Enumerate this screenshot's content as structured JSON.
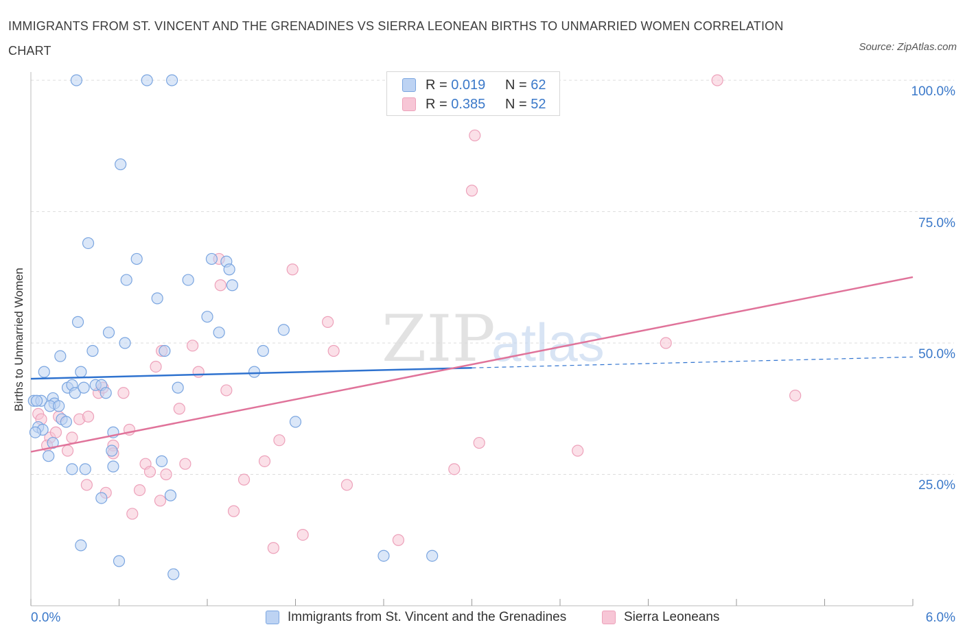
{
  "title": "IMMIGRANTS FROM ST. VINCENT AND THE GRENADINES VS SIERRA LEONEAN BIRTHS TO UNMARRIED WOMEN CORRELATION CHART",
  "source": "Source: ZipAtlas.com",
  "watermark": {
    "zip": "ZIP",
    "atlas": "atlas"
  },
  "legend": {
    "rows": [
      {
        "r_label": "R =",
        "r_value": "0.019",
        "n_label": "N =",
        "n_value": "62"
      },
      {
        "r_label": "R =",
        "r_value": "0.385",
        "n_label": "N =",
        "n_value": "52"
      }
    ]
  },
  "bottom_legend": {
    "blue_label": "Immigrants from St. Vincent and the Grenadines",
    "pink_label": "Sierra Leoneans"
  },
  "colors": {
    "blue_fill": "#bdd3f3",
    "blue_stroke": "#7aa5e0",
    "blue_line": "#2e72cf",
    "pink_fill": "#f7c6d6",
    "pink_stroke": "#eda1ba",
    "pink_line": "#e0739a",
    "grid": "#dddddd",
    "tick_text": "#3a78c9"
  },
  "chart_data": {
    "type": "scatter",
    "title": "IMMIGRANTS FROM ST. VINCENT AND THE GRENADINES VS SIERRA LEONEAN BIRTHS TO UNMARRIED WOMEN CORRELATION CHART",
    "xlabel": "",
    "ylabel": "Births to Unmarried Women",
    "xlim": [
      0,
      6
    ],
    "ylim": [
      0,
      100
    ],
    "x_tick_labels": [
      "0.0%",
      "6.0%"
    ],
    "y_tick_labels": [
      "25.0%",
      "50.0%",
      "75.0%",
      "100.0%"
    ],
    "y_ticks": [
      25,
      50,
      75,
      100
    ],
    "grid": true,
    "legend_position": "top-center",
    "series": [
      {
        "name": "Immigrants from St. Vincent and the Grenadines",
        "color": "#7aa5e0",
        "trend": {
          "solid_x": [
            0,
            3.0
          ],
          "dashed_x": [
            3.0,
            6.0
          ],
          "y_at_x0": 43.2,
          "slope": 0.69
        },
        "points": [
          [
            0.31,
            100
          ],
          [
            0.79,
            100
          ],
          [
            0.96,
            100
          ],
          [
            0.61,
            84
          ],
          [
            0.39,
            69
          ],
          [
            0.72,
            66
          ],
          [
            0.65,
            62
          ],
          [
            0.86,
            58.5
          ],
          [
            1.07,
            62
          ],
          [
            1.23,
            66
          ],
          [
            1.33,
            65.5
          ],
          [
            1.35,
            64
          ],
          [
            1.37,
            61
          ],
          [
            0.32,
            54
          ],
          [
            1.2,
            55
          ],
          [
            0.53,
            52
          ],
          [
            0.64,
            50
          ],
          [
            1.28,
            52
          ],
          [
            1.72,
            52.5
          ],
          [
            0.42,
            48.5
          ],
          [
            0.91,
            48.5
          ],
          [
            1.58,
            48.5
          ],
          [
            0.2,
            47.5
          ],
          [
            0.09,
            44.5
          ],
          [
            0.34,
            44.5
          ],
          [
            1.52,
            44.5
          ],
          [
            0.44,
            42
          ],
          [
            0.48,
            42
          ],
          [
            0.25,
            41.5
          ],
          [
            0.28,
            42
          ],
          [
            0.3,
            40.5
          ],
          [
            0.51,
            40.5
          ],
          [
            0.36,
            41.5
          ],
          [
            1.0,
            41.5
          ],
          [
            0.02,
            39
          ],
          [
            0.07,
            39
          ],
          [
            0.15,
            39.5
          ],
          [
            0.16,
            38.5
          ],
          [
            0.13,
            38
          ],
          [
            0.19,
            38
          ],
          [
            0.21,
            35.5
          ],
          [
            0.24,
            35
          ],
          [
            0.05,
            34
          ],
          [
            0.08,
            33.5
          ],
          [
            0.03,
            33
          ],
          [
            1.8,
            35
          ],
          [
            0.56,
            33
          ],
          [
            0.15,
            31
          ],
          [
            0.55,
            29.5
          ],
          [
            0.12,
            28.5
          ],
          [
            0.89,
            27.5
          ],
          [
            0.28,
            26
          ],
          [
            0.37,
            26
          ],
          [
            0.56,
            26.5
          ],
          [
            0.48,
            20.5
          ],
          [
            0.95,
            21
          ],
          [
            0.34,
            11.5
          ],
          [
            0.6,
            8.5
          ],
          [
            0.97,
            6
          ],
          [
            2.4,
            9.5
          ],
          [
            2.73,
            9.5
          ],
          [
            0.04,
            39
          ]
        ]
      },
      {
        "name": "Sierra Leoneans",
        "color": "#eda1ba",
        "trend": {
          "solid_x": [
            0,
            6.0
          ],
          "y_at_x0": 29.3,
          "slope": 5.54
        },
        "points": [
          [
            4.67,
            100
          ],
          [
            3.02,
            89.5
          ],
          [
            3.0,
            79
          ],
          [
            1.28,
            66
          ],
          [
            1.29,
            61
          ],
          [
            1.78,
            64
          ],
          [
            2.02,
            54
          ],
          [
            2.06,
            48.5
          ],
          [
            4.32,
            50
          ],
          [
            0.89,
            48.5
          ],
          [
            1.1,
            49.5
          ],
          [
            0.85,
            45.5
          ],
          [
            1.14,
            44.5
          ],
          [
            0.46,
            40.5
          ],
          [
            0.63,
            40.5
          ],
          [
            0.49,
            41.5
          ],
          [
            1.33,
            41
          ],
          [
            5.2,
            40
          ],
          [
            0.05,
            36.5
          ],
          [
            0.07,
            35.5
          ],
          [
            0.33,
            35.5
          ],
          [
            0.39,
            36
          ],
          [
            1.01,
            37.5
          ],
          [
            0.13,
            32
          ],
          [
            0.17,
            33
          ],
          [
            0.28,
            32
          ],
          [
            0.11,
            30.5
          ],
          [
            0.25,
            29.5
          ],
          [
            0.56,
            30.5
          ],
          [
            0.67,
            33.5
          ],
          [
            0.56,
            29
          ],
          [
            3.05,
            31
          ],
          [
            3.72,
            29.5
          ],
          [
            1.69,
            31.5
          ],
          [
            0.78,
            27
          ],
          [
            0.81,
            25.5
          ],
          [
            0.92,
            25
          ],
          [
            1.05,
            27
          ],
          [
            1.59,
            27.5
          ],
          [
            2.88,
            26
          ],
          [
            1.45,
            24
          ],
          [
            0.38,
            23
          ],
          [
            0.51,
            21.5
          ],
          [
            0.74,
            22
          ],
          [
            2.15,
            23
          ],
          [
            0.88,
            20
          ],
          [
            0.69,
            17.5
          ],
          [
            1.38,
            18
          ],
          [
            1.85,
            13.5
          ],
          [
            2.5,
            12.5
          ],
          [
            1.65,
            11
          ],
          [
            0.19,
            36
          ]
        ]
      }
    ]
  }
}
